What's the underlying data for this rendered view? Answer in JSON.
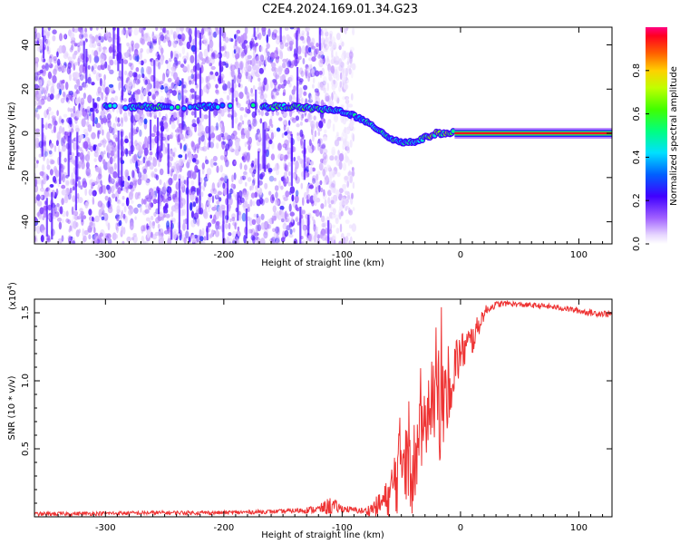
{
  "title": "C2E4.2024.169.01.34.G23",
  "chart_data": [
    {
      "type": "heatmap",
      "xlabel": "Height of straight line (km)",
      "ylabel": "Frequency (Hz)",
      "xlim": [
        -360,
        128
      ],
      "ylim": [
        -50,
        48
      ],
      "xticks": [
        -300,
        -200,
        -100,
        0,
        100
      ],
      "yticks": [
        -40,
        -20,
        0,
        20,
        40
      ],
      "colorbar": {
        "label": "Normalized spectral amplitude",
        "ticks": [
          0.0,
          0.2,
          0.4,
          0.6,
          0.8
        ],
        "range": [
          0,
          1
        ]
      },
      "noise_region": {
        "x_from": -360,
        "x_to": -90,
        "y_from": -50,
        "y_to": 48
      },
      "signal_trace": {
        "x": [
          -300,
          -270,
          -250,
          -220,
          -200,
          -160,
          -140,
          -120,
          -100,
          -90,
          -80,
          -70,
          -60,
          -50,
          -40,
          -30,
          -20,
          -10,
          0,
          10,
          128
        ],
        "y": [
          12,
          12,
          12,
          12,
          12,
          12,
          12,
          11,
          10,
          8,
          5,
          2,
          -2,
          -4,
          -4,
          -2,
          0,
          0,
          1,
          0,
          0
        ],
        "amplitude": [
          0.45,
          0.5,
          0.5,
          0.45,
          0.45,
          0.55,
          0.55,
          0.55,
          0.45,
          0.45,
          0.45,
          0.45,
          0.5,
          0.45,
          0.5,
          0.55,
          0.65,
          0.65,
          0.7,
          0.95,
          0.95
        ]
      }
    },
    {
      "type": "line",
      "xlabel": "Height of straight line (km)",
      "ylabel": "SNR (10 * v/v)",
      "y_multiplier": "(x10",
      "y_multiplier_exp": "4",
      "y_multiplier_close": ")",
      "xlim": [
        -360,
        128
      ],
      "ylim": [
        0,
        16000
      ],
      "xticks": [
        -300,
        -200,
        -100,
        0,
        100
      ],
      "yticks": [
        5000,
        10000,
        15000
      ],
      "ytick_labels": [
        "0.5",
        "1.0",
        "1.5"
      ],
      "color": "#ee3333",
      "series": [
        {
          "x": [
            -360,
            -300,
            -250,
            -200,
            -150,
            -120,
            -110,
            -100,
            -90,
            -80,
            -70,
            -60,
            -55,
            -50,
            -45,
            -40,
            -35,
            -30,
            -25,
            -20,
            -15,
            -10,
            -5,
            0,
            5,
            10,
            15,
            20,
            25,
            30,
            40,
            50,
            70,
            90,
            110,
            128
          ],
          "y": [
            200,
            250,
            300,
            300,
            400,
            550,
            800,
            600,
            500,
            400,
            800,
            1500,
            2800,
            4500,
            6500,
            3500,
            5500,
            6500,
            8500,
            9000,
            8000,
            10000,
            11000,
            12000,
            12500,
            13000,
            14000,
            15000,
            15400,
            15600,
            15700,
            15600,
            15500,
            15300,
            15000,
            14900
          ],
          "noise_amplitude": [
            150,
            150,
            150,
            150,
            150,
            300,
            700,
            300,
            200,
            300,
            800,
            1500,
            3000,
            3500,
            5500,
            3500,
            3000,
            2500,
            2500,
            5500,
            3500,
            3000,
            2500,
            1500,
            1500,
            1200,
            800,
            500,
            300,
            250,
            200,
            200,
            200,
            200,
            250,
            250
          ]
        }
      ]
    }
  ]
}
